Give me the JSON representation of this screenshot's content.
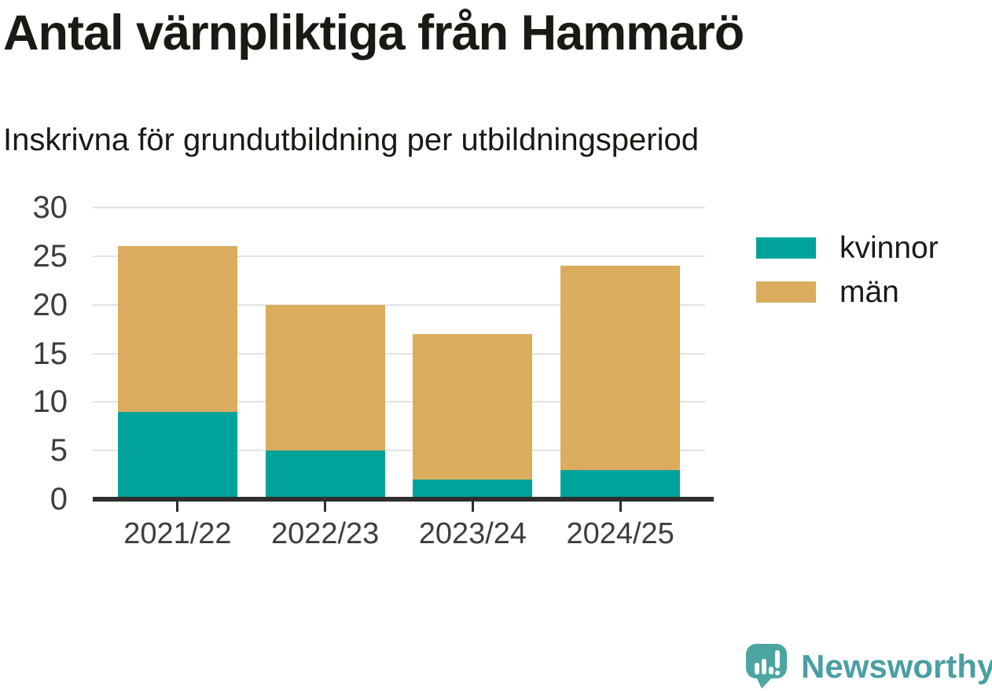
{
  "chart_data": {
    "type": "bar",
    "stacked": true,
    "title": "Antal värnpliktiga från Hammarö",
    "subtitle": "Inskrivna för grundutbildning per utbildningsperiod",
    "categories": [
      "2021/22",
      "2022/23",
      "2023/24",
      "2024/25"
    ],
    "series": [
      {
        "name": "kvinnor",
        "color": "#00a39a",
        "values": [
          9,
          5,
          2,
          3
        ]
      },
      {
        "name": "män",
        "color": "#dbac5e",
        "values": [
          17,
          15,
          15,
          21
        ]
      }
    ],
    "totals": [
      26,
      20,
      17,
      24
    ],
    "xlabel": "",
    "ylabel": "",
    "ylim": [
      0,
      30
    ],
    "yticks": [
      0,
      5,
      10,
      15,
      20,
      25,
      30
    ],
    "grid": true,
    "legend_position": "right"
  },
  "legend": {
    "items": [
      {
        "label": "kvinnor",
        "color": "#00a39a"
      },
      {
        "label": "män",
        "color": "#dbac5e"
      }
    ]
  },
  "footer": {
    "brand": "Newsworthy",
    "logo_icon": "newsworthy-speech-bubble-bar-chart-icon"
  },
  "colors": {
    "text": "#1a1a14",
    "tick_label": "#3d3d3d",
    "axis": "#2e2e2e",
    "gridline": "#e3e3e3",
    "kvinnor": "#00a39a",
    "man": "#dbac5e",
    "logo_bubble": "#4da5a2",
    "logo_glyph": "#ffffff",
    "logo_text": "#4a9fa2"
  }
}
